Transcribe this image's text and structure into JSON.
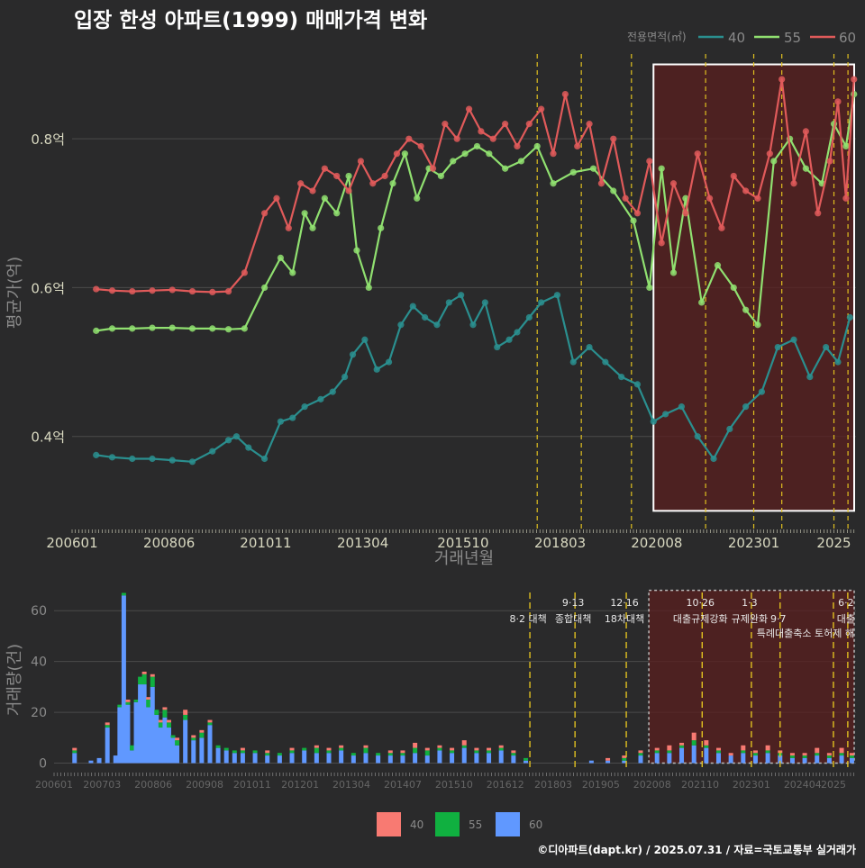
{
  "colors": {
    "bg": "#2a2a2b",
    "grid": "#4a4a4b",
    "tick": "#d8d8c0",
    "axis_title": "#8a8a8a",
    "policy": "#e0c020",
    "box": "#ffffff",
    "shade": "#5a1f1f",
    "s40": "#2a8f8f",
    "s55": "#90e070",
    "s60": "#e05a5a",
    "b40": "#f87a72",
    "b55": "#10b040",
    "b60": "#6098ff"
  },
  "title": "입장 한성 아파트(1999) 매매가격 변화",
  "credit": "©디아파트(dapt.kr) / 2025.07.31 / 자료=국토교통부 실거래가",
  "chart_data": [
    {
      "type": "line",
      "title": "입장 한성 아파트(1999) 매매가격 변화",
      "xlabel": "거래년월",
      "ylabel": "평균가(억)",
      "ylim": [
        0.275,
        0.92
      ],
      "xlim": [
        2006.0,
        2025.55
      ],
      "x_tick_values": [
        2006.0,
        2008.42,
        2010.83,
        2013.25,
        2015.75,
        2018.17,
        2020.58,
        2023.0,
        2025.0
      ],
      "x_tick_labels": [
        "200601",
        "200806",
        "201011",
        "201304",
        "201510",
        "201803",
        "202008",
        "202301",
        "2025"
      ],
      "y_tick_values": [
        0.4,
        0.6,
        0.8
      ],
      "y_tick_labels": [
        "0.4억",
        "0.6억",
        "0.8억"
      ],
      "legend": {
        "title": "전용면적(㎡)",
        "position": "top-right",
        "entries": [
          "40",
          "55",
          "60"
        ]
      },
      "policy_lines": [
        2017.6,
        2018.7,
        2019.95,
        2021.8,
        2023.0,
        2023.7,
        2025.0,
        2025.35
      ],
      "highlight_range": {
        "x": [
          2020.5,
          2025.6
        ],
        "y": [
          0.3,
          0.9
        ]
      },
      "series": [
        {
          "name": "40",
          "x": [
            2006.6,
            2007.0,
            2007.5,
            2008.0,
            2008.5,
            2009.0,
            2009.5,
            2009.9,
            2010.1,
            2010.4,
            2010.8,
            2011.2,
            2011.5,
            2011.8,
            2012.2,
            2012.5,
            2012.8,
            2013.0,
            2013.3,
            2013.6,
            2013.9,
            2014.2,
            2014.5,
            2014.8,
            2015.1,
            2015.4,
            2015.7,
            2016.0,
            2016.3,
            2016.6,
            2016.9,
            2017.1,
            2017.4,
            2017.7,
            2018.1,
            2018.5,
            2018.9,
            2019.3,
            2019.7,
            2020.1,
            2020.5,
            2020.8,
            2021.2,
            2021.6,
            2022.0,
            2022.4,
            2022.8,
            2023.2,
            2023.6,
            2024.0,
            2024.4,
            2024.8,
            2025.1,
            2025.4
          ],
          "y": [
            0.375,
            0.372,
            0.37,
            0.37,
            0.368,
            0.366,
            0.38,
            0.395,
            0.4,
            0.385,
            0.37,
            0.42,
            0.425,
            0.44,
            0.45,
            0.46,
            0.48,
            0.51,
            0.53,
            0.49,
            0.5,
            0.55,
            0.575,
            0.56,
            0.55,
            0.58,
            0.59,
            0.55,
            0.58,
            0.52,
            0.53,
            0.54,
            0.56,
            0.58,
            0.59,
            0.5,
            0.52,
            0.5,
            0.48,
            0.47,
            0.42,
            0.43,
            0.44,
            0.4,
            0.37,
            0.41,
            0.44,
            0.46,
            0.52,
            0.53,
            0.48,
            0.52,
            0.5,
            0.56
          ]
        },
        {
          "name": "55",
          "x": [
            2006.6,
            2007.0,
            2007.5,
            2008.0,
            2008.5,
            2009.0,
            2009.5,
            2009.9,
            2010.3,
            2010.8,
            2011.2,
            2011.5,
            2011.8,
            2012.0,
            2012.3,
            2012.6,
            2012.9,
            2013.1,
            2013.4,
            2013.7,
            2014.0,
            2014.3,
            2014.6,
            2014.9,
            2015.2,
            2015.5,
            2015.8,
            2016.1,
            2016.4,
            2016.8,
            2017.2,
            2017.6,
            2018.0,
            2018.5,
            2019.0,
            2019.5,
            2020.0,
            2020.4,
            2020.7,
            2021.0,
            2021.3,
            2021.7,
            2022.1,
            2022.5,
            2022.8,
            2023.1,
            2023.5,
            2023.9,
            2024.3,
            2024.7,
            2025.0,
            2025.3,
            2025.5
          ],
          "y": [
            0.542,
            0.545,
            0.545,
            0.546,
            0.546,
            0.545,
            0.545,
            0.544,
            0.545,
            0.6,
            0.64,
            0.62,
            0.7,
            0.68,
            0.72,
            0.7,
            0.75,
            0.65,
            0.6,
            0.68,
            0.74,
            0.78,
            0.72,
            0.76,
            0.75,
            0.77,
            0.78,
            0.79,
            0.78,
            0.76,
            0.77,
            0.79,
            0.74,
            0.755,
            0.76,
            0.73,
            0.69,
            0.6,
            0.76,
            0.62,
            0.72,
            0.58,
            0.63,
            0.6,
            0.57,
            0.55,
            0.77,
            0.8,
            0.76,
            0.74,
            0.82,
            0.79,
            0.86
          ]
        },
        {
          "name": "60",
          "x": [
            2006.6,
            2007.0,
            2007.5,
            2008.0,
            2008.5,
            2009.0,
            2009.5,
            2009.9,
            2010.3,
            2010.8,
            2011.1,
            2011.4,
            2011.7,
            2012.0,
            2012.3,
            2012.6,
            2012.9,
            2013.2,
            2013.5,
            2013.8,
            2014.1,
            2014.4,
            2014.7,
            2015.0,
            2015.3,
            2015.6,
            2015.9,
            2016.2,
            2016.5,
            2016.8,
            2017.1,
            2017.4,
            2017.7,
            2018.0,
            2018.3,
            2018.6,
            2018.9,
            2019.2,
            2019.5,
            2019.8,
            2020.1,
            2020.4,
            2020.7,
            2021.0,
            2021.3,
            2021.6,
            2021.9,
            2022.2,
            2022.5,
            2022.8,
            2023.1,
            2023.4,
            2023.7,
            2024.0,
            2024.3,
            2024.6,
            2024.9,
            2025.1,
            2025.3,
            2025.5
          ],
          "y": [
            0.598,
            0.596,
            0.595,
            0.596,
            0.597,
            0.595,
            0.594,
            0.595,
            0.62,
            0.7,
            0.72,
            0.68,
            0.74,
            0.73,
            0.76,
            0.75,
            0.73,
            0.77,
            0.74,
            0.75,
            0.78,
            0.8,
            0.79,
            0.76,
            0.82,
            0.8,
            0.84,
            0.81,
            0.8,
            0.82,
            0.79,
            0.82,
            0.84,
            0.78,
            0.86,
            0.79,
            0.82,
            0.74,
            0.8,
            0.72,
            0.7,
            0.77,
            0.66,
            0.74,
            0.7,
            0.78,
            0.72,
            0.68,
            0.75,
            0.73,
            0.72,
            0.78,
            0.88,
            0.74,
            0.81,
            0.7,
            0.77,
            0.85,
            0.72,
            0.88
          ]
        }
      ]
    },
    {
      "type": "bar",
      "xlabel": "",
      "ylabel": "거래량(건)",
      "ylim": [
        -3,
        70
      ],
      "xlim": [
        2006.0,
        2025.55
      ],
      "x_tick_values": [
        2006.0,
        2007.17,
        2008.42,
        2009.67,
        2010.83,
        2012.0,
        2013.25,
        2014.5,
        2015.75,
        2017.0,
        2018.17,
        2019.33,
        2020.58,
        2021.75,
        2023.0,
        2024.25,
        2025.0
      ],
      "x_tick_labels": [
        "200601",
        "200703",
        "200806",
        "200908",
        "201011",
        "201201",
        "201304",
        "201407",
        "201510",
        "201612",
        "201803",
        "201905",
        "202008",
        "202110",
        "202301",
        "202404",
        "2025"
      ],
      "y_tick_values": [
        0,
        20,
        40,
        60
      ],
      "y_tick_labels": [
        "0",
        "20",
        "40",
        "60"
      ],
      "legend": {
        "position": "bottom",
        "entries": [
          "40",
          "55",
          "60"
        ]
      },
      "policy_lines": [
        {
          "x": 2017.6,
          "top": "",
          "bottom": "8·2 대책"
        },
        {
          "x": 2018.7,
          "top": "9·13",
          "bottom": "종합대책"
        },
        {
          "x": 2019.95,
          "top": "12·16",
          "bottom": "18차대책"
        },
        {
          "x": 2021.8,
          "top": "10·26",
          "bottom": "대출규제강화"
        },
        {
          "x": 2023.0,
          "top": "1·3",
          "bottom": "규제완화"
        },
        {
          "x": 2023.7,
          "top": "",
          "bottom": "9·7"
        },
        {
          "x": 2025.0,
          "top": "",
          "bottom": ""
        },
        {
          "x": 2025.35,
          "top": "6·2",
          "bottom": "대출"
        }
      ],
      "policy_note": "특례대출축소 토허제 해",
      "highlight_range": {
        "x": [
          2020.5,
          2025.6
        ],
        "y": [
          0,
          68
        ]
      },
      "x": [
        2006.5,
        2006.9,
        2007.1,
        2007.3,
        2007.5,
        2007.6,
        2007.7,
        2007.8,
        2007.9,
        2008.0,
        2008.1,
        2008.2,
        2008.3,
        2008.4,
        2008.5,
        2008.6,
        2008.7,
        2008.8,
        2008.9,
        2009.0,
        2009.2,
        2009.4,
        2009.6,
        2009.8,
        2010.0,
        2010.2,
        2010.4,
        2010.6,
        2010.9,
        2011.2,
        2011.5,
        2011.8,
        2012.1,
        2012.4,
        2012.7,
        2013.0,
        2013.3,
        2013.6,
        2013.9,
        2014.2,
        2014.5,
        2014.8,
        2015.1,
        2015.4,
        2015.7,
        2016.0,
        2016.3,
        2016.6,
        2016.9,
        2017.2,
        2017.5,
        2017.9,
        2018.3,
        2018.7,
        2019.1,
        2019.5,
        2019.9,
        2020.3,
        2020.7,
        2021.0,
        2021.3,
        2021.6,
        2021.9,
        2022.2,
        2022.5,
        2022.8,
        2023.1,
        2023.4,
        2023.7,
        2024.0,
        2024.3,
        2024.6,
        2024.9,
        2025.2,
        2025.45
      ],
      "series": [
        {
          "name": "40",
          "values": [
            1,
            0,
            0,
            1,
            0,
            0,
            0,
            1,
            0,
            0,
            0,
            1,
            1,
            1,
            0,
            1,
            1,
            1,
            0,
            1,
            2,
            1,
            1,
            1,
            0,
            0,
            0,
            1,
            0,
            1,
            0,
            1,
            0,
            1,
            1,
            1,
            0,
            1,
            0,
            1,
            1,
            2,
            1,
            1,
            1,
            2,
            1,
            1,
            1,
            1,
            0,
            0,
            0,
            0,
            0,
            1,
            1,
            1,
            1,
            2,
            1,
            3,
            2,
            1,
            1,
            2,
            1,
            2,
            1,
            1,
            1,
            2,
            1,
            2,
            1
          ]
        },
        {
          "name": "55",
          "values": [
            1,
            0,
            0,
            1,
            0,
            1,
            1,
            1,
            2,
            1,
            3,
            4,
            3,
            4,
            2,
            2,
            3,
            2,
            1,
            2,
            2,
            1,
            2,
            1,
            1,
            1,
            1,
            1,
            1,
            1,
            1,
            1,
            1,
            2,
            1,
            1,
            1,
            2,
            1,
            1,
            1,
            2,
            2,
            1,
            1,
            1,
            1,
            1,
            1,
            1,
            1,
            0,
            0,
            0,
            0,
            0,
            1,
            1,
            1,
            1,
            1,
            2,
            1,
            1,
            0,
            1,
            1,
            1,
            1,
            1,
            1,
            1,
            1,
            1,
            1
          ]
        },
        {
          "name": "60",
          "values": [
            4,
            1,
            2,
            14,
            3,
            22,
            66,
            23,
            5,
            24,
            31,
            31,
            22,
            30,
            19,
            14,
            18,
            14,
            10,
            7,
            17,
            9,
            10,
            15,
            6,
            5,
            4,
            4,
            4,
            3,
            3,
            4,
            5,
            4,
            4,
            5,
            3,
            4,
            3,
            3,
            3,
            4,
            3,
            5,
            4,
            6,
            4,
            4,
            5,
            3,
            1,
            0,
            0,
            0,
            1,
            1,
            1,
            3,
            4,
            4,
            6,
            7,
            6,
            4,
            3,
            4,
            3,
            4,
            3,
            2,
            2,
            3,
            2,
            3,
            2
          ]
        }
      ]
    }
  ]
}
